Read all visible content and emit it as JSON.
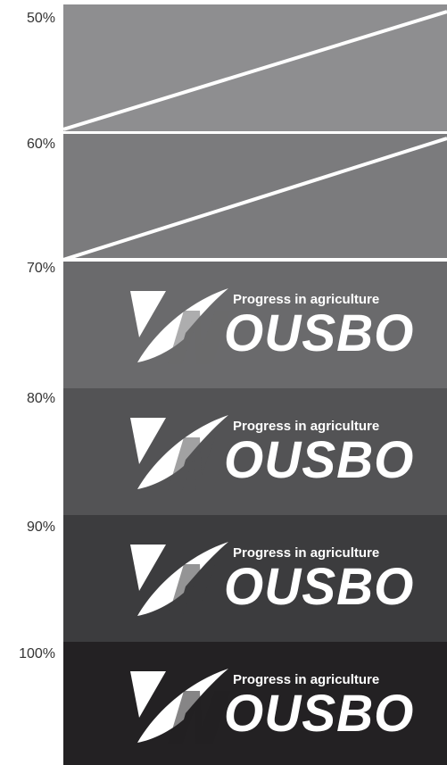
{
  "rows": [
    {
      "label": "50%",
      "color": "#8e8e90",
      "shows_logo": false
    },
    {
      "label": "60%",
      "color": "#7b7b7d",
      "shows_logo": false
    },
    {
      "label": "70%",
      "color": "#6a6a6c",
      "shows_logo": true
    },
    {
      "label": "80%",
      "color": "#535355",
      "shows_logo": true
    },
    {
      "label": "90%",
      "color": "#3c3c3e",
      "shows_logo": true
    },
    {
      "label": "100%",
      "color": "#232123",
      "shows_logo": true
    }
  ],
  "logo": {
    "tagline": "Progress in agriculture",
    "brand": "OUSBO",
    "initial": "N",
    "icon": "leaf-n-emblem"
  },
  "colors": {
    "stripe": "#ffffff",
    "logo": "#ffffff",
    "label": "#333333"
  }
}
